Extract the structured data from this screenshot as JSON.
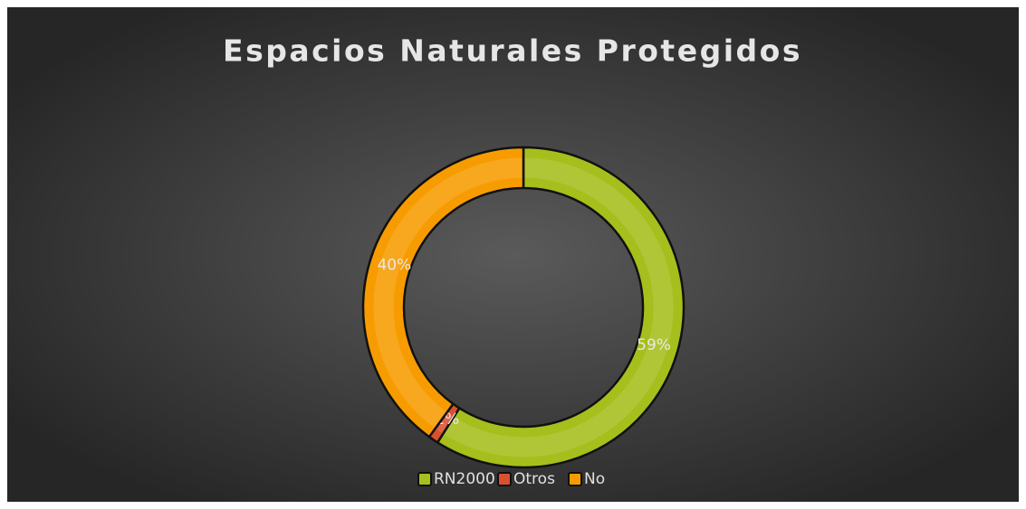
{
  "chart_data": {
    "type": "donut",
    "title": "Espacios Naturales Protegidos",
    "categories": [
      "RN2000",
      "Otros",
      "No"
    ],
    "values": [
      59,
      1,
      40
    ],
    "value_labels": [
      "59%",
      "1%",
      "40%"
    ],
    "colors": [
      "#a6bf1c",
      "#d8512e",
      "#f79c00"
    ],
    "legend": "bottom"
  }
}
